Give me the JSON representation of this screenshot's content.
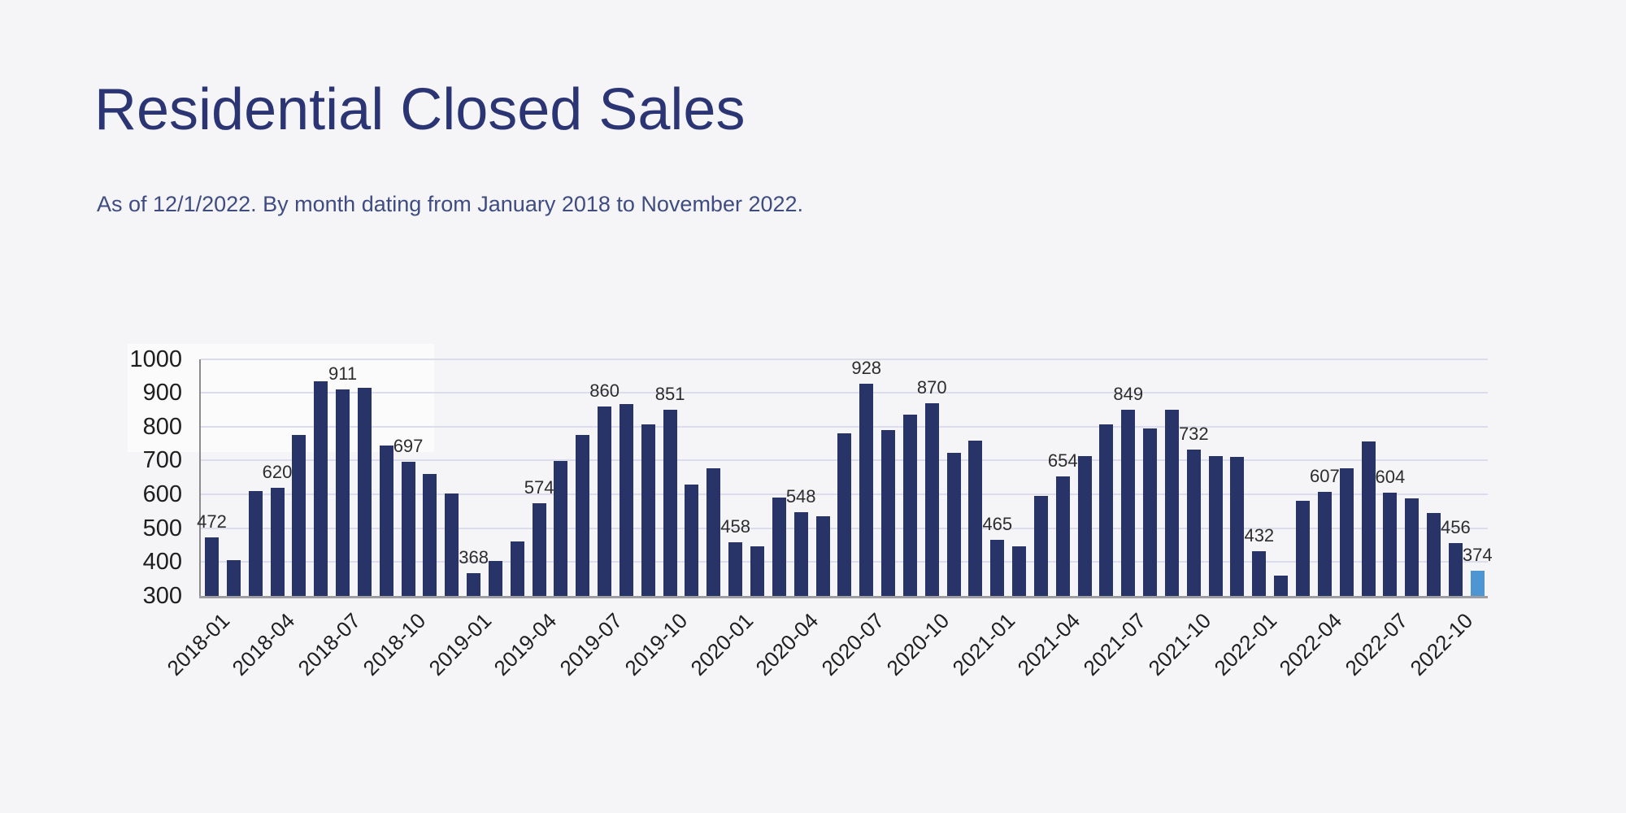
{
  "header": {
    "title": "Residential Closed Sales",
    "subtitle": "As of 12/1/2022. By month dating from January 2018 to November 2022."
  },
  "chart_data": {
    "type": "bar",
    "title": "Residential Closed Sales",
    "subtitle": "As of 12/1/2022. By month dating from January 2018 to November 2022.",
    "categories": [
      "2018-01",
      "2018-02",
      "2018-03",
      "2018-04",
      "2018-05",
      "2018-06",
      "2018-07",
      "2018-08",
      "2018-09",
      "2018-10",
      "2018-11",
      "2018-12",
      "2019-01",
      "2019-02",
      "2019-03",
      "2019-04",
      "2019-05",
      "2019-06",
      "2019-07",
      "2019-08",
      "2019-09",
      "2019-10",
      "2019-11",
      "2019-12",
      "2020-01",
      "2020-02",
      "2020-03",
      "2020-04",
      "2020-05",
      "2020-06",
      "2020-07",
      "2020-08",
      "2020-09",
      "2020-10",
      "2020-11",
      "2020-12",
      "2021-01",
      "2021-02",
      "2021-03",
      "2021-04",
      "2021-05",
      "2021-06",
      "2021-07",
      "2021-08",
      "2021-09",
      "2021-10",
      "2021-11",
      "2021-12",
      "2022-01",
      "2022-02",
      "2022-03",
      "2022-04",
      "2022-05",
      "2022-06",
      "2022-07",
      "2022-08",
      "2022-09",
      "2022-10",
      "2022-11"
    ],
    "values": [
      472,
      405,
      610,
      620,
      775,
      935,
      911,
      914,
      745,
      697,
      660,
      602,
      368,
      403,
      462,
      574,
      698,
      776,
      860,
      867,
      806,
      851,
      628,
      678,
      458,
      446,
      591,
      548,
      535,
      780,
      928,
      790,
      836,
      870,
      722,
      760,
      465,
      447,
      596,
      654,
      713,
      806,
      849,
      794,
      850,
      732,
      712,
      710,
      432,
      360,
      582,
      607,
      678,
      757,
      604,
      588,
      544,
      456,
      374
    ],
    "ylim": [
      300,
      1000
    ],
    "yticks": [
      300,
      400,
      500,
      600,
      700,
      800,
      900,
      1000
    ],
    "xtick_labels": [
      "2018-01",
      "2018-04",
      "2018-07",
      "2018-10",
      "2019-01",
      "2019-04",
      "2019-07",
      "2019-10",
      "2020-01",
      "2020-04",
      "2020-07",
      "2020-10",
      "2021-01",
      "2021-04",
      "2021-07",
      "2021-10",
      "2022-01",
      "2022-04",
      "2022-07",
      "2022-10"
    ],
    "value_labels_shown": [
      472,
      620,
      911,
      697,
      368,
      574,
      860,
      851,
      458,
      548,
      928,
      870,
      465,
      654,
      849,
      732,
      432,
      607,
      604,
      456,
      374
    ],
    "value_label_rule": "every third bar starting 2018-01, plus final bar",
    "grid": "horizontal",
    "legend": "none",
    "bar_color": "#283467",
    "highlight_last_bar": true,
    "highlight_color": "#4e96d2",
    "axis_color": "#8b8b8e",
    "gridline_color": "#dcddec",
    "background_color": "#f5f4f6"
  }
}
